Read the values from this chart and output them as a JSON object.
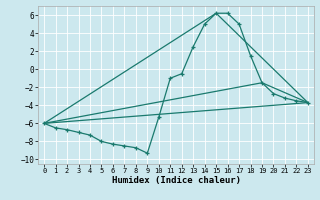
{
  "title": "",
  "xlabel": "Humidex (Indice chaleur)",
  "ylabel": "",
  "background_color": "#cce8ee",
  "grid_color": "#ffffff",
  "line_color": "#1a7a6e",
  "xlim": [
    -0.5,
    23.5
  ],
  "ylim": [
    -10.5,
    7.0
  ],
  "xticks": [
    0,
    1,
    2,
    3,
    4,
    5,
    6,
    7,
    8,
    9,
    10,
    11,
    12,
    13,
    14,
    15,
    16,
    17,
    18,
    19,
    20,
    21,
    22,
    23
  ],
  "yticks": [
    -10,
    -8,
    -6,
    -4,
    -2,
    0,
    2,
    4,
    6
  ],
  "series": [
    {
      "x": [
        0,
        1,
        2,
        3,
        4,
        5,
        6,
        7,
        8,
        9,
        10,
        11,
        12,
        13,
        14,
        15,
        16,
        17,
        18,
        19,
        20,
        21,
        22,
        23
      ],
      "y": [
        -6,
        -6.5,
        -6.7,
        -7,
        -7.3,
        -8,
        -8.3,
        -8.5,
        -8.7,
        -9.3,
        -5.3,
        -1,
        -0.5,
        2.5,
        5,
        6.2,
        6.2,
        5,
        1.5,
        -1.5,
        -2.7,
        -3.2,
        -3.5,
        -3.7
      ],
      "marker": "+",
      "linewidth": 0.9,
      "markersize": 3.5
    },
    {
      "x": [
        0,
        23
      ],
      "y": [
        -6,
        -3.7
      ],
      "marker": null,
      "linewidth": 0.9,
      "markersize": 0
    },
    {
      "x": [
        0,
        15,
        23
      ],
      "y": [
        -6,
        6.2,
        -3.7
      ],
      "marker": null,
      "linewidth": 0.9,
      "markersize": 0
    },
    {
      "x": [
        0,
        19,
        23
      ],
      "y": [
        -6,
        -1.5,
        -3.7
      ],
      "marker": null,
      "linewidth": 0.9,
      "markersize": 0
    }
  ]
}
